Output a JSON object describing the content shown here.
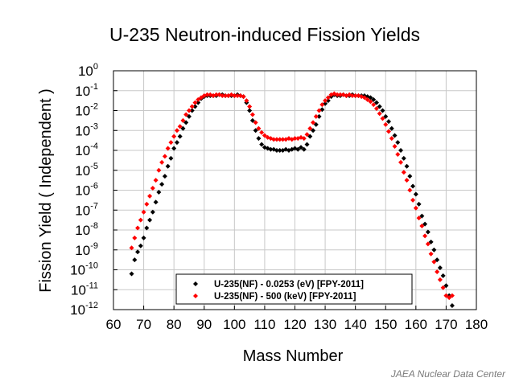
{
  "chart_data": {
    "type": "scatter",
    "title": "U-235  Neutron-induced Fission Yields",
    "xlabel": "Mass Number",
    "ylabel": "Fission Yield  ( Independent )",
    "xlim": [
      60,
      180
    ],
    "ylim_log10": [
      -12,
      0
    ],
    "y_scale": "log",
    "grid": true,
    "legend_position": "bottom-center",
    "x_ticks": [
      "60",
      "70",
      "80",
      "90",
      "100",
      "110",
      "120",
      "130",
      "140",
      "150",
      "160",
      "170",
      "180"
    ],
    "y_ticks": [
      {
        "base": "10",
        "exp": "0"
      },
      {
        "base": "10",
        "exp": "-1"
      },
      {
        "base": "10",
        "exp": "-2"
      },
      {
        "base": "10",
        "exp": "-3"
      },
      {
        "base": "10",
        "exp": "-4"
      },
      {
        "base": "10",
        "exp": "-5"
      },
      {
        "base": "10",
        "exp": "-6"
      },
      {
        "base": "10",
        "exp": "-7"
      },
      {
        "base": "10",
        "exp": "-8"
      },
      {
        "base": "10",
        "exp": "-9"
      },
      {
        "base": "10",
        "exp": "-10"
      },
      {
        "base": "10",
        "exp": "-11"
      },
      {
        "base": "10",
        "exp": "-12"
      }
    ],
    "series": [
      {
        "name": "U-235(NF) - 0.0253 (eV)  [FPY-2011]",
        "color": "#000000",
        "marker": "diamond",
        "x": [
          66,
          67,
          68,
          69,
          70,
          71,
          72,
          73,
          74,
          75,
          76,
          77,
          78,
          79,
          80,
          81,
          82,
          83,
          84,
          85,
          86,
          87,
          88,
          89,
          90,
          91,
          92,
          93,
          94,
          95,
          96,
          97,
          98,
          99,
          100,
          101,
          102,
          103,
          104,
          105,
          106,
          107,
          108,
          109,
          110,
          111,
          112,
          113,
          114,
          115,
          116,
          117,
          118,
          119,
          120,
          121,
          122,
          123,
          124,
          125,
          126,
          127,
          128,
          129,
          130,
          131,
          132,
          133,
          134,
          135,
          136,
          137,
          138,
          139,
          140,
          141,
          142,
          143,
          144,
          145,
          146,
          147,
          148,
          149,
          150,
          151,
          152,
          153,
          154,
          155,
          156,
          157,
          158,
          159,
          160,
          161,
          162,
          163,
          164,
          165,
          166,
          167,
          168,
          169,
          170,
          171,
          172
        ],
        "log10_y": [
          -10.2,
          -9.5,
          -9.1,
          -8.8,
          -8.4,
          -7.9,
          -7.5,
          -7.1,
          -6.6,
          -6.1,
          -5.7,
          -5.3,
          -4.8,
          -4.4,
          -3.9,
          -3.6,
          -3.3,
          -2.9,
          -2.6,
          -2.3,
          -2.0,
          -1.8,
          -1.6,
          -1.4,
          -1.3,
          -1.25,
          -1.25,
          -1.25,
          -1.25,
          -1.2,
          -1.2,
          -1.25,
          -1.25,
          -1.25,
          -1.25,
          -1.2,
          -1.25,
          -1.3,
          -1.6,
          -2.0,
          -2.5,
          -3.0,
          -3.4,
          -3.7,
          -3.85,
          -3.9,
          -3.95,
          -3.95,
          -4.0,
          -4.0,
          -4.0,
          -3.95,
          -4.0,
          -3.95,
          -3.9,
          -3.95,
          -3.85,
          -3.95,
          -3.7,
          -3.3,
          -3.0,
          -2.7,
          -2.3,
          -1.95,
          -1.65,
          -1.5,
          -1.3,
          -1.2,
          -1.25,
          -1.25,
          -1.2,
          -1.25,
          -1.25,
          -1.2,
          -1.25,
          -1.25,
          -1.25,
          -1.25,
          -1.3,
          -1.35,
          -1.45,
          -1.6,
          -1.8,
          -2.0,
          -2.3,
          -2.55,
          -2.9,
          -3.25,
          -3.6,
          -4.0,
          -4.4,
          -4.8,
          -5.3,
          -5.8,
          -6.2,
          -6.7,
          -7.3,
          -7.7,
          -8.1,
          -8.6,
          -9.0,
          -9.5,
          -9.9,
          -10.3,
          -10.8,
          -11.3,
          -11.8
        ]
      },
      {
        "name": "U-235(NF) - 500 (keV)  [FPY-2011]",
        "color": "#ff0000",
        "marker": "diamond",
        "x": [
          66,
          67,
          68,
          69,
          70,
          71,
          72,
          73,
          74,
          75,
          76,
          77,
          78,
          79,
          80,
          81,
          82,
          83,
          84,
          85,
          86,
          87,
          88,
          89,
          90,
          91,
          92,
          93,
          94,
          95,
          96,
          97,
          98,
          99,
          100,
          101,
          102,
          103,
          104,
          105,
          106,
          107,
          108,
          109,
          110,
          111,
          112,
          113,
          114,
          115,
          116,
          117,
          118,
          119,
          120,
          121,
          122,
          123,
          124,
          125,
          126,
          127,
          128,
          129,
          130,
          131,
          132,
          133,
          134,
          135,
          136,
          137,
          138,
          139,
          140,
          141,
          142,
          143,
          144,
          145,
          146,
          147,
          148,
          149,
          150,
          151,
          152,
          153,
          154,
          155,
          156,
          157,
          158,
          159,
          160,
          161,
          162,
          163,
          164,
          165,
          166,
          167,
          168,
          169,
          170,
          171,
          172
        ],
        "log10_y": [
          -8.9,
          -8.4,
          -7.9,
          -7.5,
          -7.1,
          -6.7,
          -6.3,
          -5.9,
          -5.5,
          -5.0,
          -4.6,
          -4.3,
          -3.9,
          -3.6,
          -3.3,
          -3.0,
          -2.8,
          -2.5,
          -2.2,
          -2.0,
          -1.8,
          -1.6,
          -1.45,
          -1.35,
          -1.25,
          -1.2,
          -1.2,
          -1.25,
          -1.2,
          -1.2,
          -1.25,
          -1.25,
          -1.25,
          -1.2,
          -1.25,
          -1.25,
          -1.25,
          -1.3,
          -1.5,
          -1.8,
          -2.2,
          -2.6,
          -2.9,
          -3.1,
          -3.25,
          -3.35,
          -3.4,
          -3.45,
          -3.45,
          -3.45,
          -3.45,
          -3.45,
          -3.4,
          -3.45,
          -3.4,
          -3.4,
          -3.35,
          -3.4,
          -3.2,
          -2.9,
          -2.6,
          -2.3,
          -2.0,
          -1.7,
          -1.5,
          -1.35,
          -1.2,
          -1.15,
          -1.2,
          -1.2,
          -1.2,
          -1.25,
          -1.2,
          -1.25,
          -1.25,
          -1.25,
          -1.3,
          -1.35,
          -1.45,
          -1.55,
          -1.7,
          -1.9,
          -2.15,
          -2.4,
          -2.7,
          -3.05,
          -3.4,
          -3.8,
          -4.2,
          -4.6,
          -5.1,
          -5.5,
          -6.0,
          -6.5,
          -6.9,
          -7.4,
          -7.8,
          -8.3,
          -8.7,
          -9.2,
          -9.6,
          -10.1,
          -10.5,
          -10.9,
          -11.3,
          -11.4,
          -11.3
        ]
      }
    ]
  },
  "credit": "JAEA Nuclear Data Center"
}
